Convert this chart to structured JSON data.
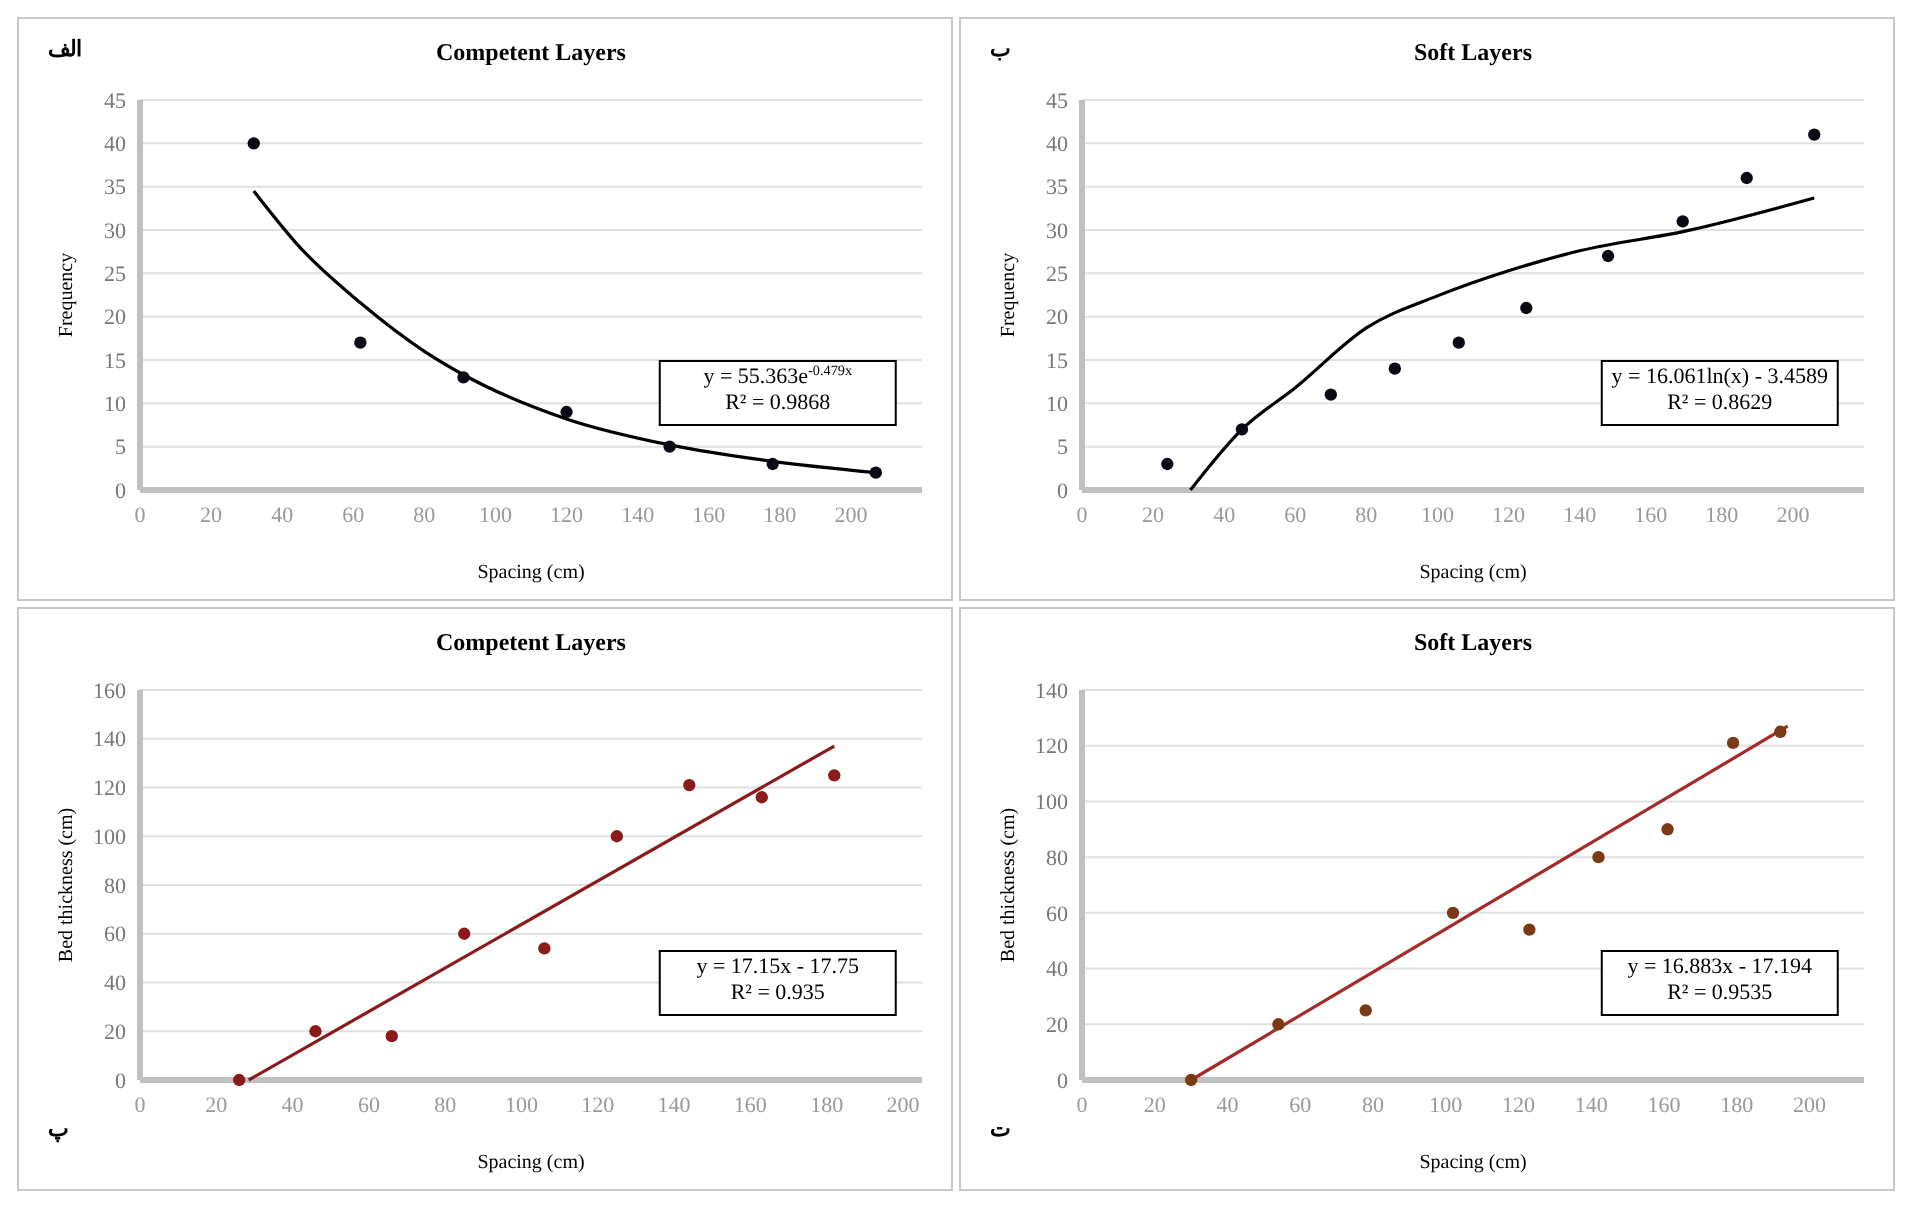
{
  "chart_data": [
    {
      "type": "scatter",
      "title": "Competent  Layers",
      "xlabel": "Spacing (cm)",
      "ylabel": "Frequency",
      "xlim": [
        0,
        220
      ],
      "ylim": [
        0,
        45
      ],
      "xticks": [
        0,
        20,
        40,
        60,
        80,
        100,
        120,
        140,
        160,
        180,
        200
      ],
      "yticks": [
        0,
        5,
        10,
        15,
        20,
        25,
        30,
        35,
        40,
        45
      ],
      "grid": "y",
      "annotations": [
        "الف",
        "y = 55.363e$^{-0.479x}$",
        "R² = 0.9868"
      ],
      "series": [
        {
          "marker": "circle",
          "color": "#0a0a14",
          "x": [
            32,
            62,
            91,
            120,
            149,
            178,
            207
          ],
          "values": [
            40,
            17,
            13,
            9,
            5,
            3,
            2
          ]
        },
        {
          "type": "line",
          "marker": "none",
          "color": "#000000",
          "x": [
            32,
            45,
            62,
            80,
            91,
            120,
            149,
            178,
            207
          ],
          "values": [
            34.5,
            28,
            21.6,
            16,
            13.3,
            8.2,
            5.2,
            3.3,
            2
          ]
        }
      ]
    },
    {
      "type": "scatter",
      "title": "Soft Layers",
      "xlabel": "Spacing (cm)",
      "ylabel": "Frequency",
      "xlim": [
        0,
        220
      ],
      "ylim": [
        0,
        45
      ],
      "xticks": [
        0,
        20,
        40,
        60,
        80,
        100,
        120,
        140,
        160,
        180,
        200
      ],
      "yticks": [
        0,
        5,
        10,
        15,
        20,
        25,
        30,
        35,
        40,
        45
      ],
      "grid": "y",
      "annotations": [
        "ب",
        "y = 16.061ln(x) - 3.4589",
        "R² = 0.8629"
      ],
      "series": [
        {
          "marker": "circle",
          "color": "#0a0a14",
          "x": [
            24,
            45,
            70,
            88,
            106,
            125,
            148,
            169,
            187,
            206
          ],
          "values": [
            3,
            7,
            11,
            14,
            17,
            21,
            27,
            31,
            36,
            41
          ]
        },
        {
          "type": "line",
          "marker": "none",
          "color": "#000000",
          "x": [
            30.5,
            45,
            60,
            80,
            100,
            120,
            140,
            170,
            206
          ],
          "values": [
            0,
            7,
            11.8,
            18.7,
            22.4,
            25.3,
            27.6,
            29.9,
            33.7
          ]
        }
      ]
    },
    {
      "type": "scatter",
      "title": "Competent  Layers",
      "xlabel": "Spacing (cm)",
      "ylabel": "Bed thickness (cm)",
      "xlim": [
        0,
        205
      ],
      "ylim": [
        0,
        160
      ],
      "xticks": [
        0,
        20,
        40,
        60,
        80,
        100,
        120,
        140,
        160,
        180,
        200
      ],
      "yticks": [
        0,
        20,
        40,
        60,
        80,
        100,
        120,
        140,
        160
      ],
      "grid": "y",
      "annotations": [
        "پ",
        "y = 17.15x - 17.75",
        "R² = 0.935"
      ],
      "series": [
        {
          "marker": "circle",
          "color": "#8b1a1a",
          "x": [
            26,
            46,
            66,
            85,
            106,
            125,
            144,
            163,
            182
          ],
          "values": [
            0,
            20,
            18,
            60,
            54,
            100,
            121,
            116,
            125
          ]
        },
        {
          "type": "line",
          "marker": "none",
          "color": "#8b1a1a",
          "x": [
            28.5,
            182
          ],
          "values": [
            0,
            137
          ]
        }
      ]
    },
    {
      "type": "scatter",
      "title": "Soft Layers",
      "xlabel": "Spacing (cm)",
      "ylabel": "Bed thickness (cm)",
      "xlim": [
        0,
        215
      ],
      "ylim": [
        0,
        140
      ],
      "xticks": [
        0,
        20,
        40,
        60,
        80,
        100,
        120,
        140,
        160,
        180,
        200
      ],
      "yticks": [
        0,
        20,
        40,
        60,
        80,
        100,
        120,
        140
      ],
      "grid": "y",
      "annotations": [
        "ت",
        "y = 16.883x - 17.194",
        "R² = 0.9535"
      ],
      "series": [
        {
          "marker": "circle",
          "color": "#7a3a14",
          "x": [
            30,
            54,
            78,
            102,
            123,
            142,
            161,
            179,
            192
          ],
          "values": [
            0,
            20,
            25,
            60,
            54,
            80,
            90,
            121,
            125
          ]
        },
        {
          "type": "line",
          "marker": "none",
          "color": "#a52a2a",
          "x": [
            30,
            194
          ],
          "values": [
            0,
            127
          ]
        }
      ]
    }
  ]
}
